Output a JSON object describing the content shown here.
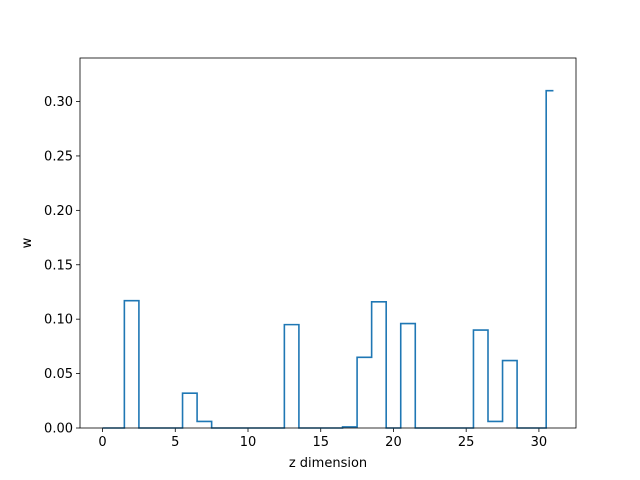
{
  "chart_data": {
    "type": "line",
    "drawstyle": "steps-mid",
    "xlabel": "z dimension",
    "ylabel": "w",
    "xlim": [
      -1.55,
      32.55
    ],
    "ylim": [
      0,
      0.34
    ],
    "xticks": [
      0,
      5,
      10,
      15,
      20,
      25,
      30
    ],
    "xtick_labels": [
      "0",
      "5",
      "10",
      "15",
      "20",
      "25",
      "30"
    ],
    "yticks": [
      0.0,
      0.05,
      0.1,
      0.15,
      0.2,
      0.25,
      0.3
    ],
    "ytick_labels": [
      "0.00",
      "0.05",
      "0.10",
      "0.15",
      "0.20",
      "0.25",
      "0.30"
    ],
    "grid": false,
    "color": "#1f77b4",
    "x": [
      0,
      1,
      2,
      3,
      4,
      5,
      6,
      7,
      8,
      9,
      10,
      11,
      12,
      13,
      14,
      15,
      16,
      17,
      18,
      19,
      20,
      21,
      22,
      23,
      24,
      25,
      26,
      27,
      28,
      29,
      30,
      31
    ],
    "y": [
      0,
      0,
      0.117,
      0,
      0,
      0,
      0.032,
      0.006,
      0,
      0,
      0,
      0,
      0,
      0.095,
      0,
      0,
      0,
      0.001,
      0.065,
      0.116,
      0,
      0.096,
      0,
      0,
      0,
      0,
      0.09,
      0.006,
      0.062,
      0,
      0,
      0.31
    ]
  }
}
